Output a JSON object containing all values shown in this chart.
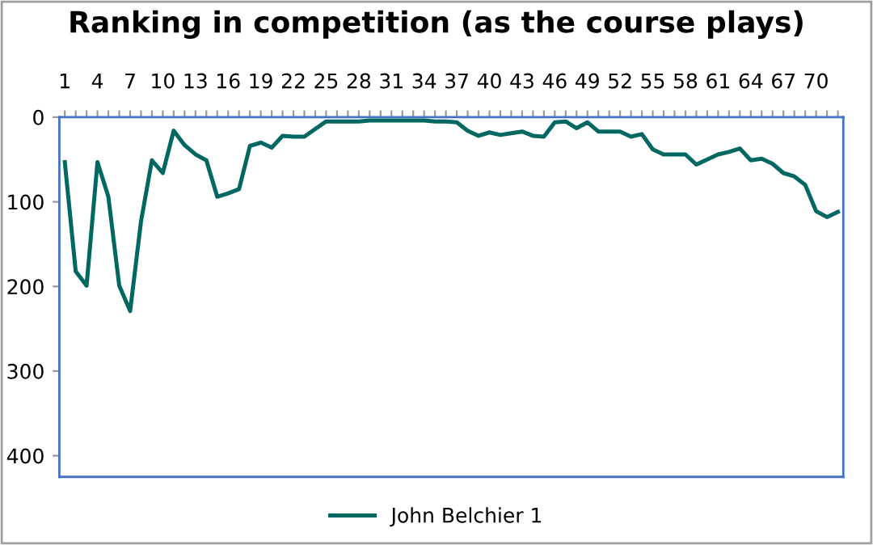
{
  "chart_data": {
    "type": "line",
    "title": "Ranking in competition (as the course plays)",
    "categories": [
      "1",
      null,
      null,
      "4",
      null,
      null,
      "7",
      null,
      null,
      "10",
      null,
      null,
      "13",
      null,
      null,
      "16",
      null,
      null,
      "19",
      null,
      null,
      "22",
      null,
      null,
      "25",
      null,
      null,
      "28",
      null,
      null,
      "31",
      null,
      null,
      "34",
      null,
      null,
      "37",
      null,
      null,
      "40",
      null,
      null,
      "43",
      null,
      null,
      "46",
      null,
      null,
      "49",
      null,
      null,
      "52",
      null,
      null,
      "55",
      null,
      null,
      "58",
      null,
      null,
      "61",
      null,
      null,
      "64",
      null,
      null,
      "67",
      null,
      null,
      "70",
      null,
      null
    ],
    "series": [
      {
        "name": "John Belchier 1",
        "color": "#006860",
        "values": [
          53,
          182,
          199,
          53,
          94,
          199,
          229,
          123,
          51,
          66,
          16,
          33,
          44,
          51,
          94,
          90,
          85,
          34,
          30,
          36,
          22,
          23,
          23,
          14,
          5,
          5,
          5,
          5,
          4,
          4,
          4,
          4,
          4,
          4,
          5,
          5,
          6,
          16,
          22,
          18,
          21,
          19,
          17,
          22,
          23,
          6,
          5,
          13,
          6,
          17,
          17,
          17,
          23,
          20,
          38,
          44,
          44,
          44,
          56,
          50,
          44,
          41,
          37,
          51,
          49,
          55,
          66,
          70,
          80,
          111,
          118,
          112
        ]
      }
    ],
    "ylim": [
      425,
      0
    ],
    "yticks": [
      0,
      100,
      200,
      300,
      400
    ],
    "grid": false,
    "legend": "bottom",
    "marker": "none",
    "line_style": "solid"
  }
}
